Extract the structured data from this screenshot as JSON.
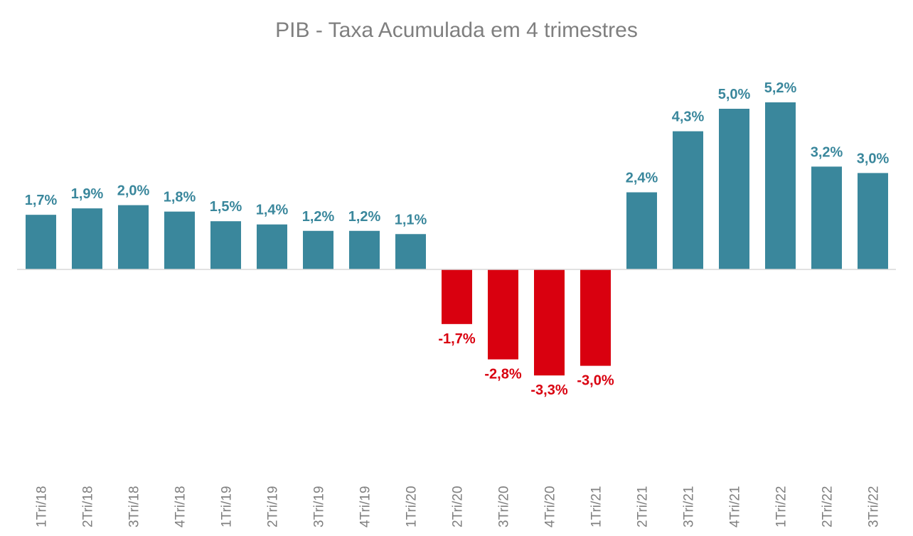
{
  "chart_data": {
    "type": "bar",
    "title": "PIB - Taxa Acumulada em 4 trimestres",
    "xlabel": "",
    "ylabel": "",
    "categories": [
      "1Tri/18",
      "2Tri/18",
      "3Tri/18",
      "4Tri/18",
      "1Tri/19",
      "2Tri/19",
      "3Tri/19",
      "4Tri/19",
      "1Tri/20",
      "2Tri/20",
      "3Tri/20",
      "4Tri/20",
      "1Tri/21",
      "2Tri/21",
      "3Tri/21",
      "4Tri/21",
      "1Tri/22",
      "2Tri/22",
      "3Tri/22"
    ],
    "values": [
      1.7,
      1.9,
      2.0,
      1.8,
      1.5,
      1.4,
      1.2,
      1.2,
      1.1,
      -1.7,
      -2.8,
      -3.3,
      -3.0,
      2.4,
      4.3,
      5.0,
      5.2,
      3.2,
      3.0
    ],
    "data_labels": [
      "1,7%",
      "1,9%",
      "2,0%",
      "1,8%",
      "1,5%",
      "1,4%",
      "1,2%",
      "1,2%",
      "1,1%",
      "-1,7%",
      "-2,8%",
      "-3,3%",
      "-3,0%",
      "2,4%",
      "4,3%",
      "5,0%",
      "5,2%",
      "3,2%",
      "3,0%"
    ],
    "grid": false,
    "legend": "none",
    "colors": {
      "positive": "#3a879c",
      "negative": "#d9000f",
      "axis": "#d9d9d9",
      "title": "#7f7f7f",
      "ticks": "#7f7f7f"
    }
  }
}
